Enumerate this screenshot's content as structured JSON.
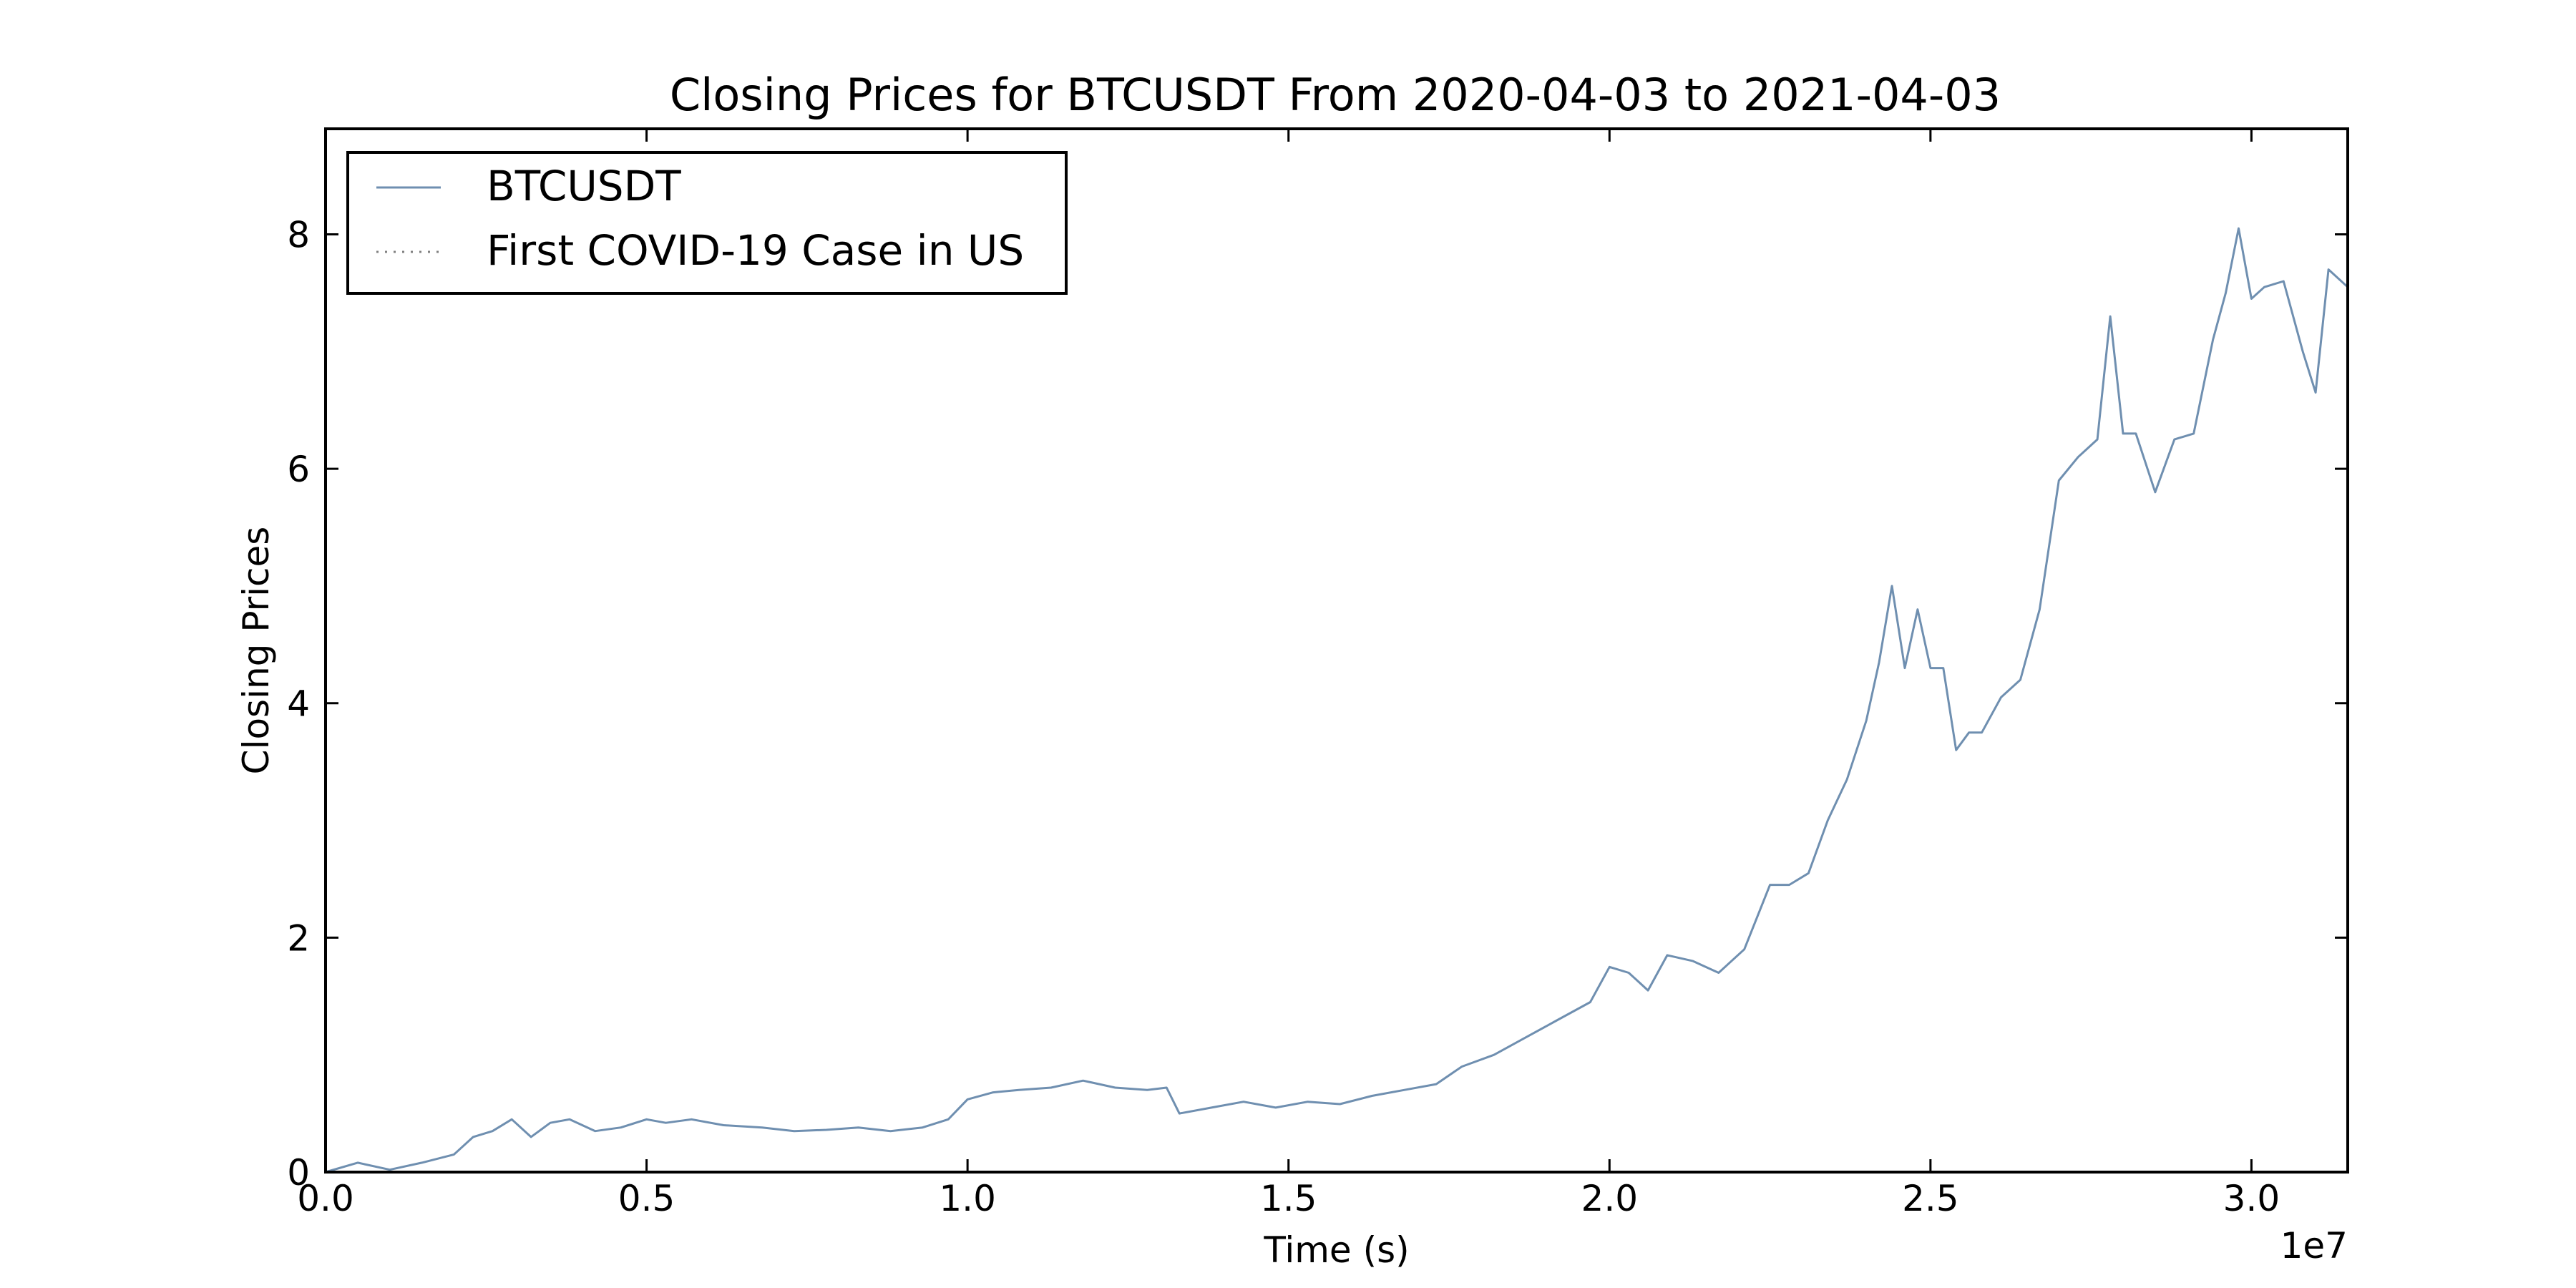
{
  "chart_data": {
    "type": "line",
    "title": "Closing Prices for BTCUSDT From 2020-04-03 to 2021-04-03",
    "xlabel": "Time (s)",
    "ylabel": "Closing Prices",
    "x_offset_label": "1e7",
    "xlim": [
      0,
      31500000
    ],
    "ylim": [
      0,
      8.9
    ],
    "x_ticks": [
      0,
      5000000,
      10000000,
      15000000,
      20000000,
      25000000,
      30000000
    ],
    "x_tick_labels": [
      "0.0",
      "0.5",
      "1.0",
      "1.5",
      "2.0",
      "2.5",
      "3.0"
    ],
    "y_ticks": [
      0,
      2,
      4,
      6,
      8
    ],
    "y_tick_labels": [
      "0",
      "2",
      "4",
      "6",
      "8"
    ],
    "grid": false,
    "legend_position": "top-left",
    "series": [
      {
        "name": "BTCUSDT",
        "color": "#6f8fb0",
        "style": "solid",
        "x": [
          0,
          500000,
          1000000,
          1500000,
          2000000,
          2300000,
          2600000,
          2900000,
          3200000,
          3500000,
          3800000,
          4200000,
          4600000,
          5000000,
          5300000,
          5700000,
          6200000,
          6800000,
          7300000,
          7800000,
          8300000,
          8800000,
          9300000,
          9700000,
          10000000,
          10400000,
          10800000,
          11300000,
          11800000,
          12300000,
          12800000,
          13100000,
          13300000,
          13800000,
          14300000,
          14800000,
          15300000,
          15800000,
          16300000,
          16800000,
          17300000,
          17700000,
          18200000,
          18700000,
          19200000,
          19700000,
          20000000,
          20300000,
          20600000,
          20900000,
          21300000,
          21700000,
          22100000,
          22500000,
          22800000,
          23100000,
          23400000,
          23700000,
          24000000,
          24200000,
          24400000,
          24600000,
          24800000,
          25000000,
          25200000,
          25400000,
          25600000,
          25800000,
          26100000,
          26400000,
          26700000,
          27000000,
          27300000,
          27600000,
          27800000,
          28000000,
          28200000,
          28500000,
          28800000,
          29100000,
          29400000,
          29600000,
          29800000,
          30000000,
          30200000,
          30500000,
          30800000,
          31000000,
          31200000,
          31500000
        ],
        "values": [
          0.0,
          0.08,
          0.02,
          0.08,
          0.15,
          0.3,
          0.35,
          0.45,
          0.3,
          0.42,
          0.45,
          0.35,
          0.38,
          0.45,
          0.42,
          0.45,
          0.4,
          0.38,
          0.35,
          0.36,
          0.38,
          0.35,
          0.38,
          0.45,
          0.62,
          0.68,
          0.7,
          0.72,
          0.78,
          0.72,
          0.7,
          0.72,
          0.5,
          0.55,
          0.6,
          0.55,
          0.6,
          0.58,
          0.65,
          0.7,
          0.75,
          0.9,
          1.0,
          1.15,
          1.3,
          1.45,
          1.75,
          1.7,
          1.55,
          1.85,
          1.8,
          1.7,
          1.9,
          2.45,
          2.45,
          2.55,
          3.0,
          3.35,
          3.85,
          4.35,
          5.0,
          4.3,
          4.8,
          4.3,
          4.3,
          3.6,
          3.75,
          3.75,
          4.05,
          4.2,
          4.8,
          5.9,
          6.1,
          6.25,
          7.3,
          6.3,
          6.3,
          5.8,
          6.25,
          6.3,
          7.1,
          7.5,
          8.05,
          7.45,
          7.55,
          7.6,
          7.0,
          6.65,
          7.7,
          7.55
        ]
      },
      {
        "name": "First COVID-19 Case in US",
        "color": "#808080",
        "style": "dotted",
        "x": [],
        "values": []
      }
    ]
  }
}
